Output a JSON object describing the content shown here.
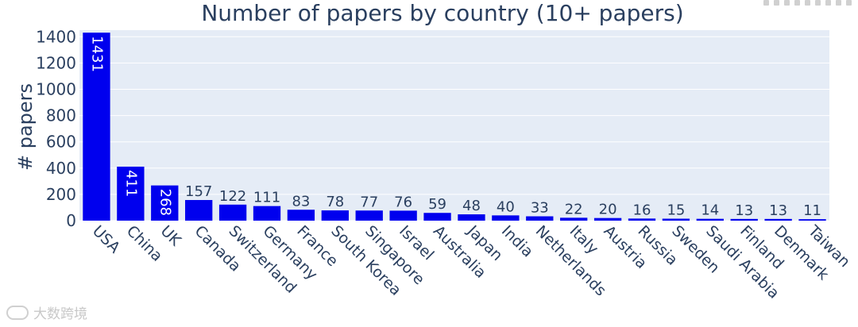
{
  "chart_data": {
    "type": "bar",
    "title": "Number of papers by country (10+ papers)",
    "ylabel": "# papers",
    "xlabel": "",
    "ylim": [
      0,
      1450
    ],
    "yticks": [
      0,
      200,
      400,
      600,
      800,
      1000,
      1200,
      1400
    ],
    "grid": true,
    "bar_color": "#0000ee",
    "plot_bg": "#e5ecf6",
    "categories": [
      "USA",
      "China",
      "UK",
      "Canada",
      "Switzerland",
      "Germany",
      "France",
      "South Korea",
      "Singapore",
      "Israel",
      "Australia",
      "Japan",
      "India",
      "Netherlands",
      "Italy",
      "Austria",
      "Russia",
      "Sweden",
      "Saudi Arabia",
      "Finland",
      "Denmark",
      "Taiwan"
    ],
    "values": [
      1431,
      411,
      268,
      157,
      122,
      111,
      83,
      78,
      77,
      76,
      59,
      48,
      40,
      33,
      22,
      20,
      16,
      15,
      14,
      13,
      13,
      11
    ]
  },
  "watermark": {
    "text": "大数跨境",
    "icon": "logo-icon"
  }
}
